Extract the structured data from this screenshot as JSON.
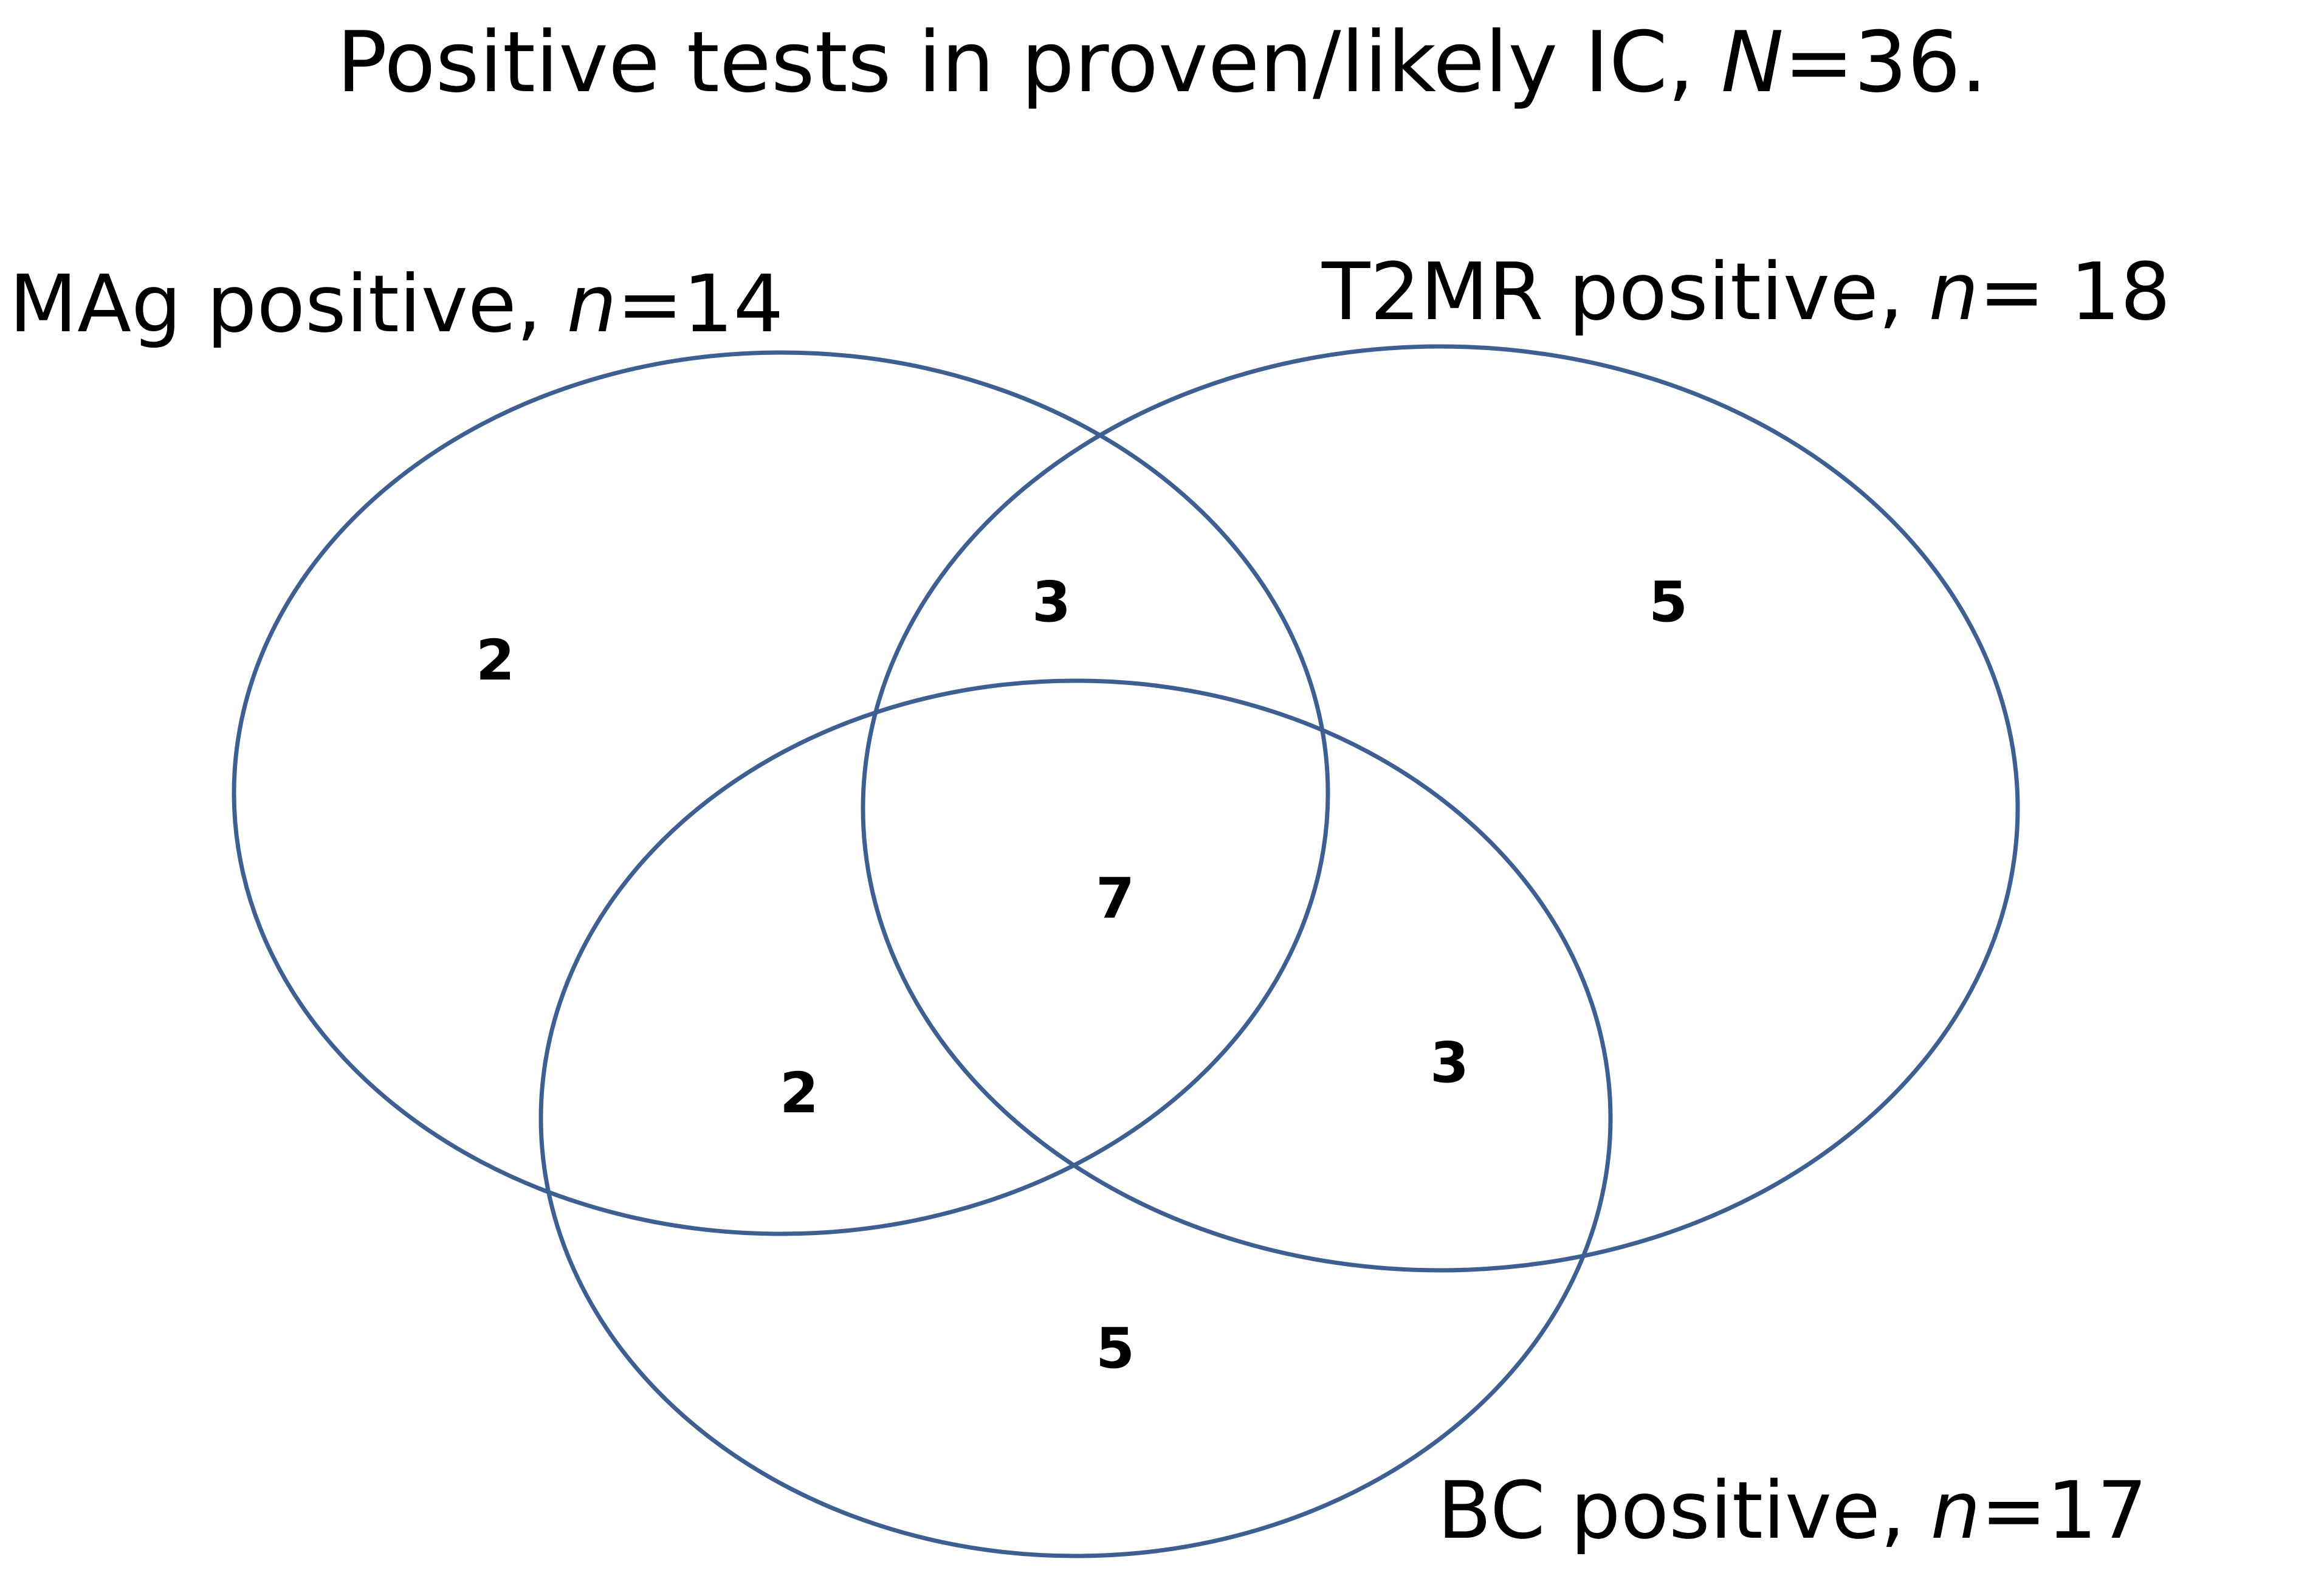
{
  "title": {
    "prefix": "Positive tests in proven/likely IC, ",
    "emph": "N",
    "suffix": "=36."
  },
  "sets": [
    {
      "id": "mag",
      "prefix": "MAg positive, ",
      "emph": "n",
      "suffix": "=14"
    },
    {
      "id": "t2mr",
      "prefix": "T2MR positive, ",
      "emph": "n",
      "suffix": "= 18"
    },
    {
      "id": "bc",
      "prefix": "BC positive, ",
      "emph": "n",
      "suffix": "=17"
    }
  ],
  "regions": {
    "mag_only": "2",
    "t2mr_only": "5",
    "bc_only": "5",
    "mag_t2mr": "3",
    "mag_bc": "2",
    "t2mr_bc": "3",
    "all_three": "7"
  },
  "colors": {
    "outline": "#3d5f91"
  }
}
